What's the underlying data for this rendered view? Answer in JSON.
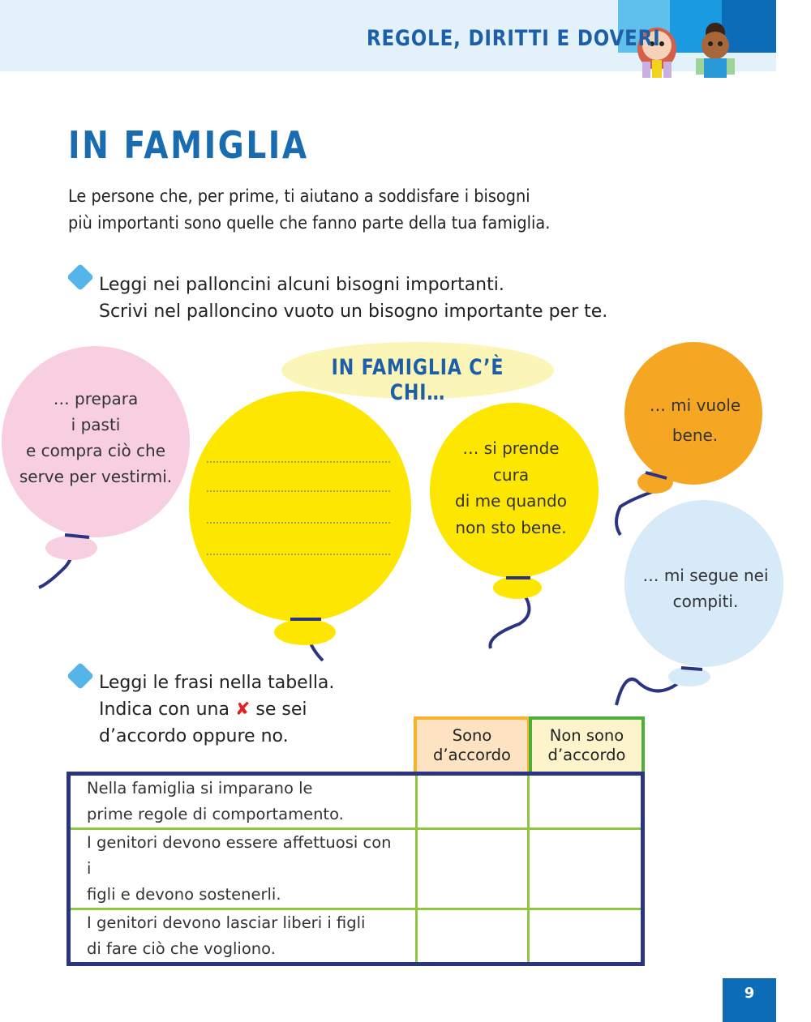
{
  "header": {
    "section_title": "REGOLE, DIRITTI E DOVERI",
    "colors": [
      "#5fc0ee",
      "#1a9ae0",
      "#0d6cb8"
    ]
  },
  "title": "IN FAMIGLIA",
  "intro": [
    "Le persone che, per prime, ti aiutano a soddisfare i bisogni",
    "più importanti sono quelle che fanno parte della tua famiglia."
  ],
  "exercise1": {
    "lines": [
      "Leggi nei palloncini alcuni bisogni importanti.",
      "Scrivi nel palloncino vuoto un bisogno importante per te."
    ]
  },
  "balloons": {
    "label": "IN FAMIGLIA C’È CHI…",
    "pink": [
      "… prepara",
      "i pasti",
      "e compra ciò che",
      "serve per vestirmi."
    ],
    "yellow_mid": [
      "… si prende",
      "cura",
      "di me quando",
      "non sto bene."
    ],
    "orange": [
      "… mi vuole",
      "bene."
    ],
    "blue": [
      "… mi segue nei",
      "compiti."
    ]
  },
  "exercise2": {
    "line1": "Leggi le frasi nella tabella.",
    "line2_a": "Indica con una",
    "mark": "✘",
    "line2_b": "se sei",
    "line3": "d’accordo oppure no."
  },
  "table": {
    "headers": [
      [
        "Sono",
        "d’accordo"
      ],
      [
        "Non sono",
        "d’accordo"
      ]
    ],
    "rows": [
      [
        "Nella famiglia si imparano le",
        "prime regole di comportamento."
      ],
      [
        "I genitori devono essere affettuosi con i",
        "figli e devono sostenerli."
      ],
      [
        "I genitori devono lasciar liberi i figli",
        "di fare ciò che vogliono."
      ]
    ]
  },
  "page_number": "9"
}
